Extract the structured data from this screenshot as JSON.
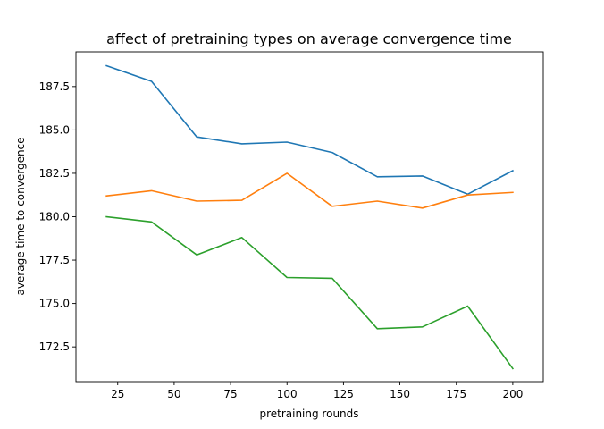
{
  "chart_data": {
    "type": "line",
    "title": "affect of pretraining types on average convergence time",
    "xlabel": "pretraining rounds",
    "ylabel": "average time to convergence",
    "x": [
      20,
      40,
      60,
      80,
      100,
      120,
      140,
      160,
      180,
      200
    ],
    "xlim": [
      6.5,
      213.5
    ],
    "ylim": [
      170.5,
      189.5
    ],
    "xticks": [
      25,
      50,
      75,
      100,
      125,
      150,
      175,
      200
    ],
    "xtick_labels": [
      "25",
      "50",
      "75",
      "100",
      "125",
      "150",
      "175",
      "200"
    ],
    "yticks": [
      172.5,
      175.0,
      177.5,
      180.0,
      182.5,
      185.0,
      187.5
    ],
    "ytick_labels": [
      "172.5",
      "175.0",
      "177.5",
      "180.0",
      "182.5",
      "185.0",
      "187.5"
    ],
    "grid": false,
    "legend": "none",
    "series": [
      {
        "color": "#1f77b4",
        "values": [
          188.7,
          187.8,
          184.6,
          184.2,
          184.3,
          183.7,
          182.3,
          182.35,
          181.3,
          182.65
        ]
      },
      {
        "color": "#ff7f0e",
        "values": [
          181.2,
          181.5,
          180.9,
          180.95,
          182.5,
          180.6,
          180.9,
          180.5,
          181.25,
          181.4
        ]
      },
      {
        "color": "#2ca02c",
        "values": [
          180.0,
          179.7,
          177.8,
          178.8,
          176.5,
          176.45,
          173.55,
          173.65,
          174.85,
          171.25
        ]
      }
    ]
  }
}
